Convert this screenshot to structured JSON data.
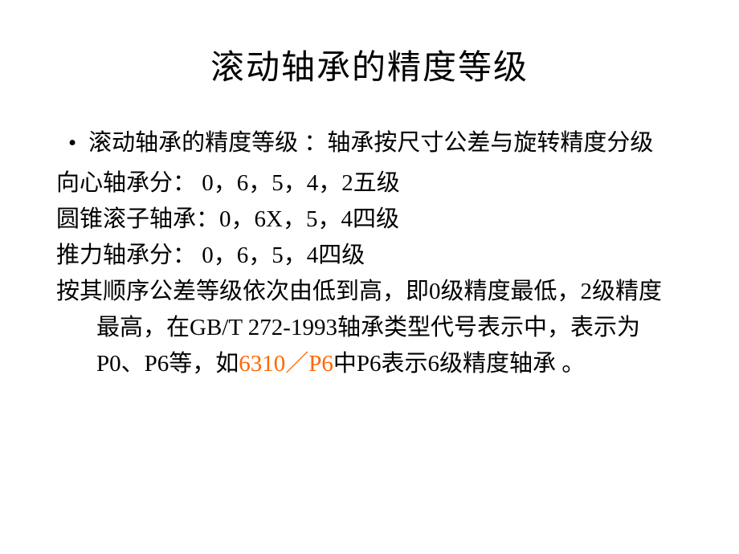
{
  "title": "滚动轴承的精度等级",
  "bullet_item": "滚动轴承的精度等级 ：轴承按尺寸公差与旋转精度分级",
  "line1": "向心轴承分：   0，6，5，4，2五级",
  "line2": "圆锥滚子轴承：0，6X，5，4四级",
  "line3": "推力轴承分：   0，6，5，4四级",
  "paragraph_before": "按其顺序公差等级依次由低到高，即0级精度最低，2级精度最高，在GB/T 272-1993轴承类型代号表示中，表示为P0、P6等，如",
  "paragraph_highlight": "6310／P6",
  "paragraph_after": "中P6表示6级精度轴承 。",
  "colors": {
    "background": "#ffffff",
    "text": "#000000",
    "highlight": "#ff6600"
  },
  "typography": {
    "title_fontsize": 42,
    "body_fontsize": 29,
    "font_family": "SimSun"
  }
}
